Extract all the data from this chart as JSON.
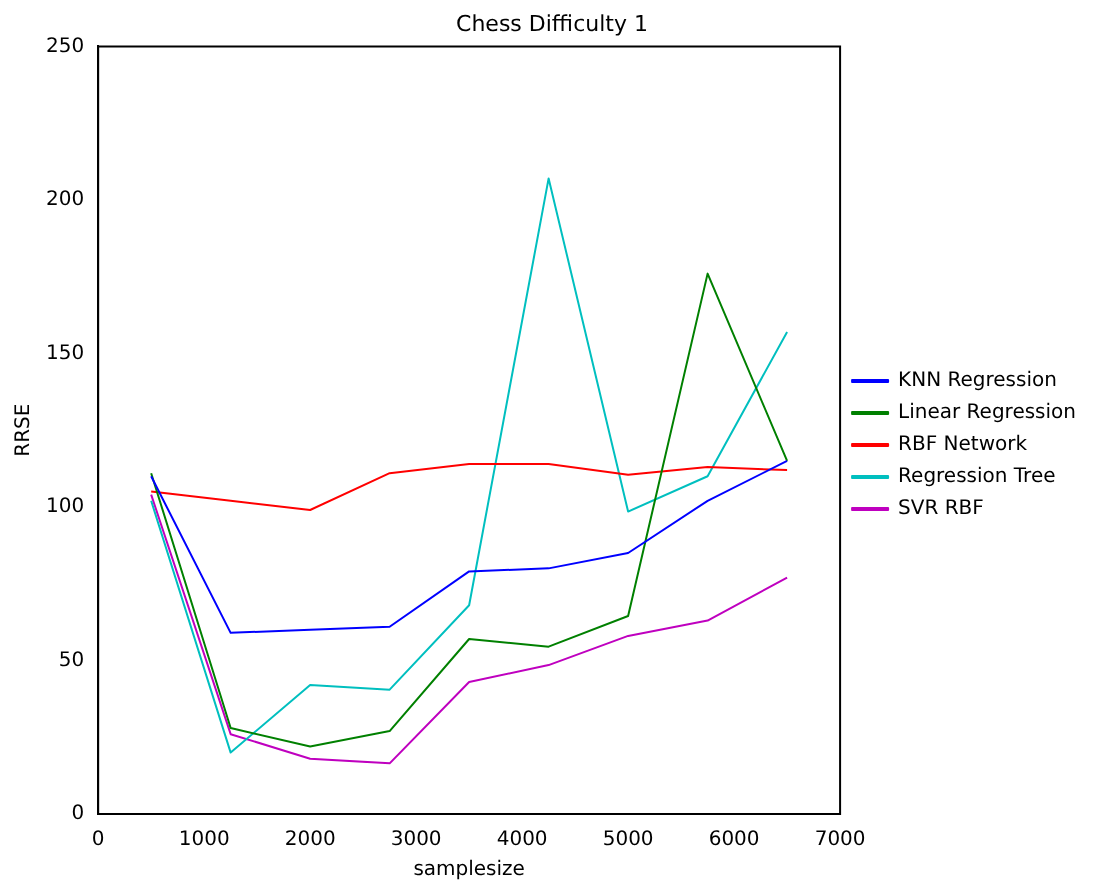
{
  "chart_data": {
    "type": "line",
    "title": "Chess Difficulty 1",
    "xlabel": "samplesize",
    "ylabel": "RRSE",
    "x": [
      500,
      1250,
      2000,
      2750,
      3500,
      4250,
      5000,
      5750,
      6500
    ],
    "xlim": [
      0,
      7000
    ],
    "xticks": [
      0,
      1000,
      2000,
      3000,
      4000,
      5000,
      6000,
      7000
    ],
    "ylim": [
      0,
      250
    ],
    "yticks": [
      0,
      50,
      100,
      150,
      200,
      250
    ],
    "grid": false,
    "legend": "right",
    "marker": "none",
    "line_style": "solid",
    "series": [
      {
        "name": "KNN Regression",
        "color": "#0000ff",
        "values": [
          110,
          59,
          60,
          61,
          79,
          80,
          85,
          102,
          115
        ]
      },
      {
        "name": "Linear Regression",
        "color": "#008000",
        "values": [
          111,
          28,
          22,
          27,
          57,
          54.5,
          64.5,
          176,
          115
        ]
      },
      {
        "name": "RBF Network",
        "color": "#ff0000",
        "values": [
          105,
          102,
          99,
          111,
          114,
          114,
          110.5,
          113,
          112
        ]
      },
      {
        "name": "Regression Tree",
        "color": "#00bfbf",
        "values": [
          102,
          20,
          42,
          40.5,
          68,
          207,
          98.5,
          110,
          157
        ]
      },
      {
        "name": "SVR RBF",
        "color": "#bf00bf",
        "values": [
          104,
          26,
          18,
          16.5,
          43,
          48.5,
          58,
          63,
          77
        ]
      }
    ]
  }
}
